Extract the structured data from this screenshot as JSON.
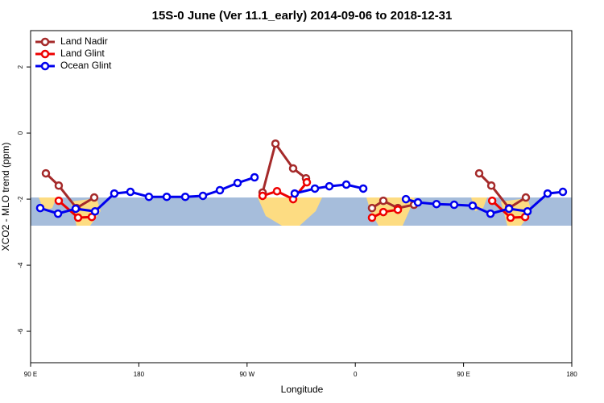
{
  "chart_data": {
    "type": "line",
    "title": "15S-0 June (Ver 11.1_early)   2014-09-06 to 2018-12-31",
    "x_label": "Longitude",
    "y_label": "XCO2 - MLO trend (ppm)",
    "xlim": [
      90,
      540
    ],
    "ylim": [
      -6.95,
      3.1
    ],
    "xticks": [
      {
        "value": 90,
        "label": "90 E"
      },
      180,
      {
        "value": 270,
        "label": "90 W"
      },
      {
        "value": 360,
        "label": "0"
      },
      {
        "value": 450,
        "label": "90 E"
      },
      {
        "value": 540,
        "label": "180"
      }
    ],
    "yticks": [
      2,
      0,
      -2,
      -4,
      -6
    ],
    "legend": "top-left",
    "series": [
      {
        "name": "Land Nadir",
        "color": "#a52a2a",
        "x": [
          102.7,
          113.4,
          128.2,
          142.9,
          null,
          282.9,
          293.6,
          308.3,
          319.0,
          null,
          373.9,
          383.3,
          395.4,
          408.8,
          null,
          463.0,
          473.1,
          487.8,
          501.8
        ],
        "values": [
          -1.22,
          -1.59,
          -2.27,
          -1.95,
          null,
          -1.8,
          -0.32,
          -1.07,
          -1.37,
          null,
          -2.27,
          -2.05,
          -2.27,
          -2.17,
          null,
          -1.22,
          -1.59,
          -2.27,
          -1.95
        ]
      },
      {
        "name": "Land Glint",
        "color": "#ee0000",
        "x": [
          113.4,
          129.5,
          140.9,
          null,
          282.9,
          294.9,
          308.3,
          319.7,
          null,
          373.9,
          383.3,
          395.4,
          null,
          473.8,
          489.1,
          501.2
        ],
        "values": [
          -2.05,
          -2.56,
          -2.54,
          null,
          -1.9,
          -1.76,
          -2.0,
          -1.49,
          null,
          -2.56,
          -2.39,
          -2.32,
          null,
          -2.05,
          -2.56,
          -2.54
        ]
      },
      {
        "name": "Ocean Glint",
        "color": "#0000ee",
        "x": [
          98.0,
          112.8,
          127.5,
          143.6,
          159.6,
          173.0,
          188.4,
          203.2,
          218.6,
          233.3,
          247.4,
          262.1,
          276.2,
          null,
          309.6,
          326.4,
          338.4,
          352.5,
          366.6,
          null,
          402.1,
          412.1,
          427.5,
          442.2,
          457.6,
          472.4,
          487.8,
          503.2,
          519.9,
          532.6
        ],
        "values": [
          -2.27,
          -2.44,
          -2.29,
          -2.37,
          -1.83,
          -1.78,
          -1.93,
          -1.93,
          -1.93,
          -1.9,
          -1.73,
          -1.51,
          -1.34,
          null,
          -1.83,
          -1.68,
          -1.61,
          -1.56,
          -1.68,
          null,
          -2.0,
          -2.1,
          -2.15,
          -2.17,
          -2.2,
          -2.44,
          -2.29,
          -2.37,
          -1.83,
          -1.78
        ]
      }
    ]
  }
}
